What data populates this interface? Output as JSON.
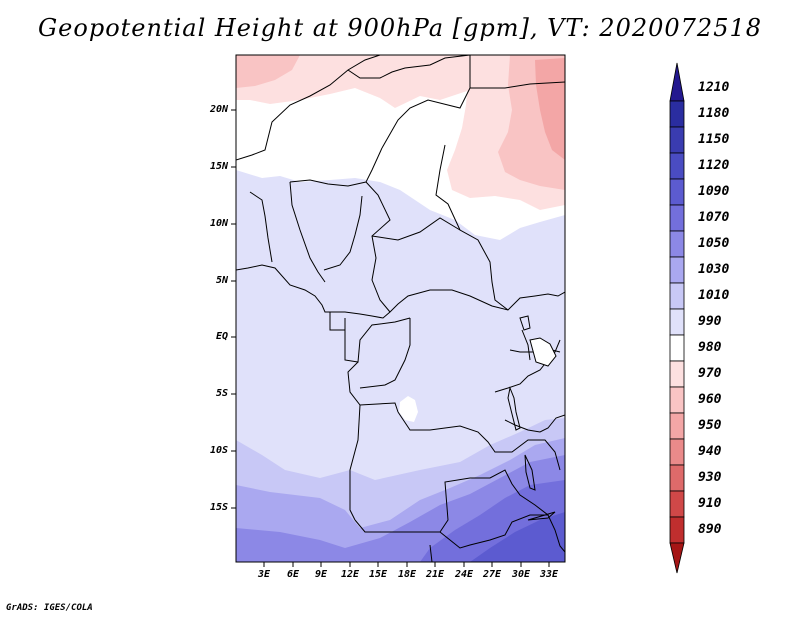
{
  "title": "Geopotential Height at 900hPa [gpm], VT: 2020072518",
  "credit": "GrADS: IGES/COLA",
  "map": {
    "lon_range": [
      0,
      34.5
    ],
    "lat_range": [
      -19.5,
      24.5
    ],
    "y_ticks": [
      "20N",
      "15N",
      "10N",
      "5N",
      "EQ",
      "5S",
      "10S",
      "15S"
    ],
    "y_tick_values": [
      20,
      15,
      10,
      5,
      0,
      -5,
      -10,
      -15
    ],
    "x_ticks": [
      "3E",
      "6E",
      "9E",
      "12E",
      "15E",
      "18E",
      "21E",
      "24E",
      "27E",
      "30E",
      "33E"
    ],
    "x_tick_values": [
      3,
      6,
      9,
      12,
      15,
      18,
      21,
      24,
      27,
      30,
      33
    ]
  },
  "colorbar": {
    "labels": [
      "1210",
      "1180",
      "1150",
      "1120",
      "1090",
      "1070",
      "1050",
      "1030",
      "1010",
      "990",
      "980",
      "970",
      "960",
      "950",
      "940",
      "930",
      "910",
      "890"
    ],
    "colors": [
      "#23188f",
      "#2a2da0",
      "#3a3cb0",
      "#4a4cc2",
      "#5c5bd0",
      "#736fdc",
      "#8c88e6",
      "#aaa8f0",
      "#c8c8f6",
      "#e0e1fa",
      "#ffffff",
      "#fde0e0",
      "#f9c4c4",
      "#f3a6a6",
      "#ea8a8a",
      "#de6a6a",
      "#d04848",
      "#c02e2e",
      "#a51515"
    ]
  }
}
